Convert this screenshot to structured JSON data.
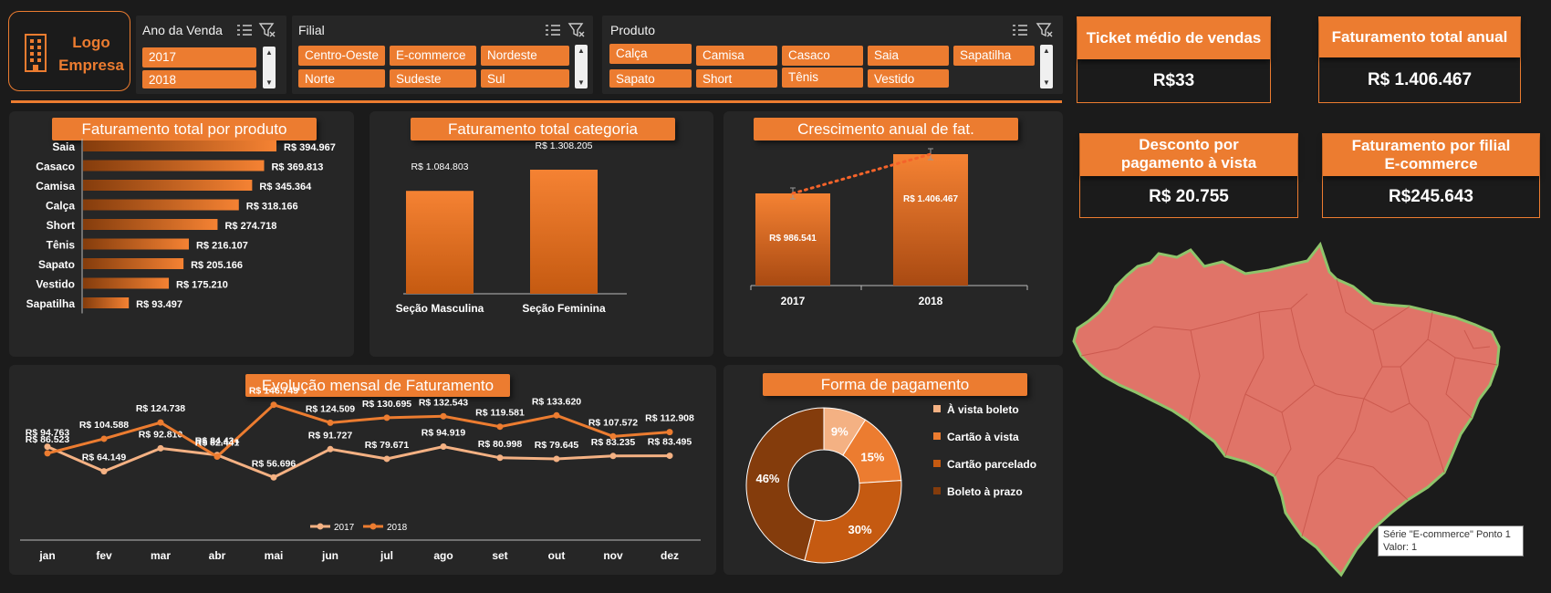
{
  "logo": {
    "line1": "Logo",
    "line2": "Empresa"
  },
  "slicers": {
    "ano": {
      "title": "Ano da Venda",
      "items": [
        "2017",
        "2018"
      ]
    },
    "filial": {
      "title": "Filial",
      "items": [
        "Centro-Oeste",
        "E-commerce",
        "Nordeste",
        "Norte",
        "Sudeste",
        "Sul"
      ]
    },
    "produto": {
      "title": "Produto",
      "items": [
        "Calça",
        "Camisa",
        "Casaco",
        "Saia",
        "Sapatilha",
        "Sapato",
        "Short",
        "Tênis",
        "Vestido"
      ]
    }
  },
  "kpis": {
    "ticket": {
      "title": "Ticket médio de vendas",
      "value": "R$33"
    },
    "faturamento": {
      "title": "Faturamento total anual",
      "value": "R$ 1.406.467"
    },
    "desconto": {
      "title_line1": "Desconto por",
      "title_line2": "pagamento à vista",
      "value": "R$ 20.755"
    },
    "filial": {
      "title_line1": "Faturamento por filial",
      "title_line2": "E-commerce",
      "value": "R$245.643"
    }
  },
  "tooltip": {
    "line1": "Série \"E-commerce\" Ponto 1",
    "line2": "Valor: 1"
  },
  "colors": {
    "accent": "#ec7c30",
    "background": "#1b1b1b",
    "panel": "#262626",
    "map_fill": "#e07468",
    "map_border": "#8fc46b"
  },
  "chart_data": [
    {
      "id": "produto",
      "type": "bar",
      "orientation": "horizontal",
      "title": "Faturamento total por produto",
      "categories": [
        "Saia",
        "Casaco",
        "Camisa",
        "Calça",
        "Short",
        "Tênis",
        "Sapato",
        "Vestido",
        "Sapatilha"
      ],
      "values": [
        394967,
        369813,
        345364,
        318166,
        274718,
        216107,
        205166,
        175210,
        93497
      ],
      "labels": [
        "R$ 394.967",
        "R$ 369.813",
        "R$ 345.364",
        "R$ 318.166",
        "R$ 274.718",
        "R$ 216.107",
        "R$ 205.166",
        "R$ 175.210",
        "R$ 93.497"
      ]
    },
    {
      "id": "categoria",
      "type": "bar",
      "title": "Faturamento total categoria",
      "categories": [
        "Seção Masculina",
        "Seção Feminina"
      ],
      "values": [
        1084803,
        1308205
      ],
      "labels": [
        "R$ 1.084.803",
        "R$ 1.308.205"
      ]
    },
    {
      "id": "crescimento",
      "type": "bar",
      "title": "Crescimento anual de fat.",
      "categories": [
        "2017",
        "2018"
      ],
      "values": [
        986541,
        1406467
      ],
      "labels": [
        "R$ 986.541",
        "R$ 1.406.467"
      ],
      "trendline": true,
      "error_bars": true
    },
    {
      "id": "mensal",
      "type": "line",
      "title": "Evolução mensal de Faturamento",
      "categories": [
        "jan",
        "fev",
        "mar",
        "abr",
        "mai",
        "jun",
        "jul",
        "ago",
        "set",
        "out",
        "nov",
        "dez"
      ],
      "series": [
        {
          "name": "2017",
          "values": [
            94763,
            64149,
            92810,
            84434,
            56696,
            91727,
            79671,
            94919,
            80998,
            79645,
            83235,
            83495
          ],
          "labels": [
            "R$ 94.763",
            "R$ 64.149",
            "R$ 92.810",
            "R$ 84.434",
            "R$ 56.696",
            "R$ 91.727",
            "R$ 79.671",
            "R$ 94.919",
            "R$ 80.998",
            "R$ 79.645",
            "R$ 83.235",
            "R$ 83.495"
          ],
          "color": "#f4b183"
        },
        {
          "name": "2018",
          "values": [
            86523,
            104588,
            124738,
            82441,
            146749,
            124509,
            130695,
            132543,
            119581,
            133620,
            107572,
            112908
          ],
          "labels": [
            "R$ 86.523",
            "R$ 104.588",
            "R$ 124.738",
            "R$ 82.441",
            "R$ 146.749",
            "R$ 124.509",
            "R$ 130.695",
            "R$ 132.543",
            "R$ 119.581",
            "R$ 133.620",
            "R$ 107.572",
            "R$ 112.908"
          ],
          "color": "#ec7c30"
        }
      ],
      "legend": "bottom"
    },
    {
      "id": "pagamento",
      "type": "pie",
      "donut": true,
      "title": "Forma de pagamento",
      "categories": [
        "À vista boleto",
        "Cartão à vista",
        "Cartão parcelado",
        "Boleto à prazo"
      ],
      "values": [
        9,
        15,
        30,
        46
      ],
      "labels": [
        "9%",
        "15%",
        "30%",
        "46%"
      ],
      "colors": [
        "#f4b183",
        "#ec7c30",
        "#c55a11",
        "#843c0c"
      ],
      "legend": "right"
    }
  ]
}
